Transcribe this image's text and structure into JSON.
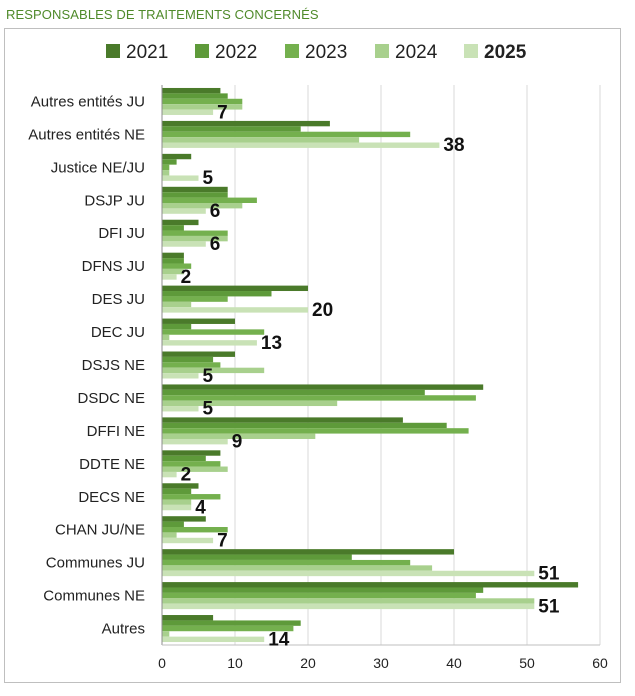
{
  "page": {
    "title": "RESPONSABLES DE TRAITEMENTS CONCERNÉS"
  },
  "chart_data": {
    "type": "bar",
    "orientation": "horizontal",
    "title": "RESPONSABLES DE TRAITEMENTS CONCERNÉS",
    "xlabel": "",
    "ylabel": "",
    "xlim": [
      0,
      60
    ],
    "xticks": [
      0,
      10,
      20,
      30,
      40,
      50,
      60
    ],
    "grid": true,
    "legend_position": "top",
    "categories": [
      "Autres entités JU",
      "Autres entités NE",
      "Justice NE/JU",
      "DSJP JU",
      "DFI JU",
      "DFNS JU",
      "DES JU",
      "DEC JU",
      "DSJS NE",
      "DSDC NE",
      "DFFI NE",
      "DDTE NE",
      "DECS NE",
      "CHAN JU/NE",
      "Communes JU",
      "Communes NE",
      "Autres"
    ],
    "series": [
      {
        "name": "2021",
        "color": "#4a7a2a",
        "bold": false,
        "values": [
          8,
          23,
          4,
          9,
          5,
          3,
          20,
          10,
          10,
          44,
          33,
          8,
          5,
          6,
          40,
          57,
          7
        ]
      },
      {
        "name": "2022",
        "color": "#5e9a3a",
        "bold": false,
        "values": [
          9,
          19,
          2,
          9,
          3,
          3,
          15,
          4,
          7,
          36,
          39,
          6,
          4,
          3,
          26,
          44,
          19
        ]
      },
      {
        "name": "2023",
        "color": "#74b04e",
        "bold": false,
        "values": [
          11,
          34,
          1,
          13,
          9,
          4,
          9,
          14,
          8,
          43,
          42,
          8,
          8,
          9,
          34,
          43,
          18
        ]
      },
      {
        "name": "2024",
        "color": "#a8d08d",
        "bold": false,
        "values": [
          11,
          27,
          1,
          11,
          9,
          3,
          4,
          1,
          14,
          24,
          21,
          9,
          4,
          2,
          37,
          51,
          1
        ]
      },
      {
        "name": "2025",
        "color": "#c9e2b6",
        "bold": true,
        "values": [
          7,
          38,
          5,
          6,
          6,
          2,
          20,
          13,
          5,
          5,
          9,
          2,
          4,
          7,
          51,
          51,
          14
        ]
      }
    ]
  }
}
